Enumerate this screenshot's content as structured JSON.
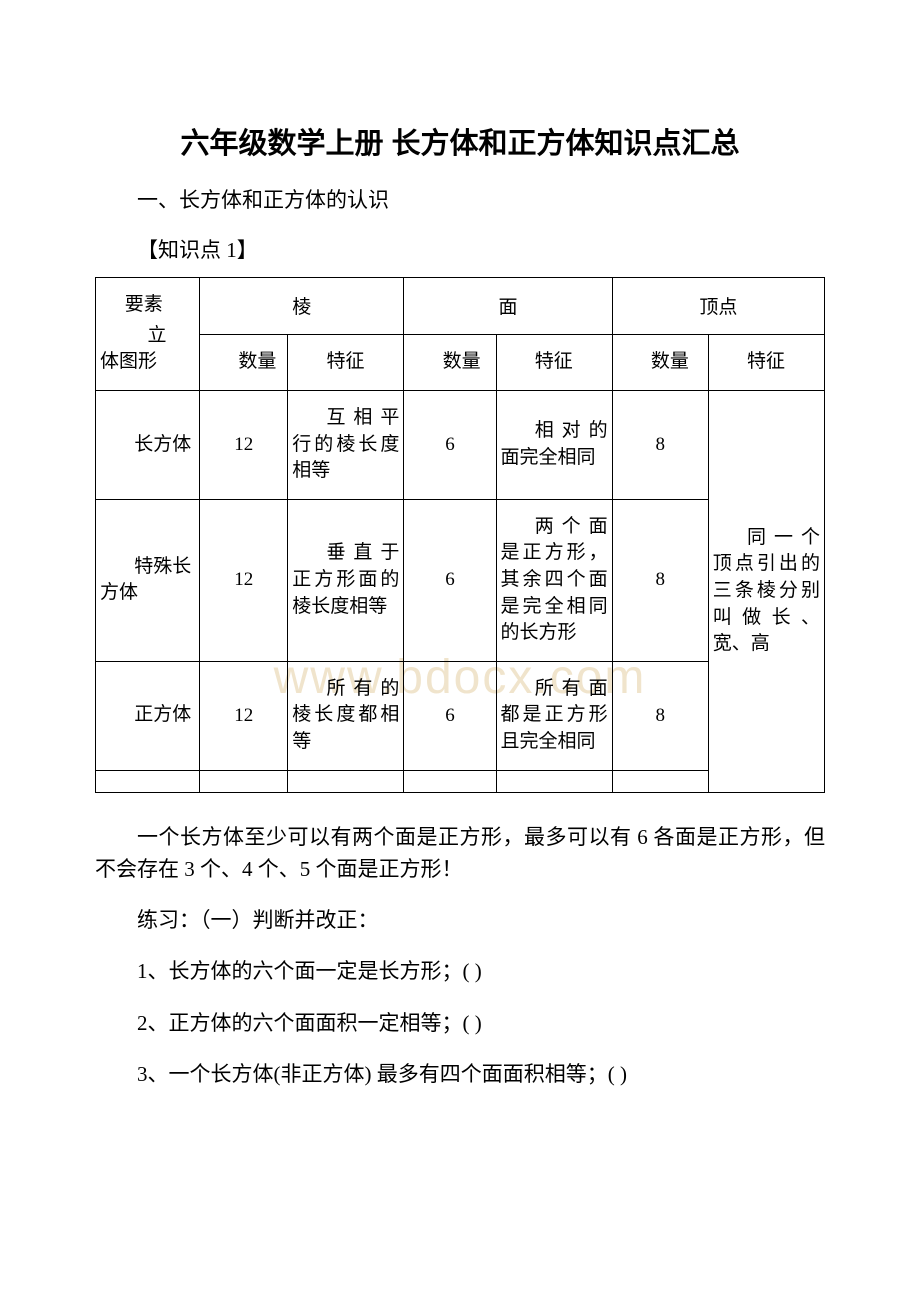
{
  "title": "六年级数学上册 长方体和正方体知识点汇总",
  "section1": "一、长方体和正方体的认识",
  "knowledge_point_label": "【知识点 1】",
  "watermark": "www.bdocx.com",
  "table": {
    "diag_top": "要素",
    "diag_bottom_line1": "立",
    "diag_bottom_line2": "体图形",
    "group_headers": [
      "棱",
      "面",
      "顶点"
    ],
    "sub_headers": {
      "count": "数量",
      "feature": "特征"
    },
    "rows": [
      {
        "name": "长方体",
        "edge_count": "12",
        "edge_feature": "互相平行的棱长度相等",
        "face_count": "6",
        "face_feature": "相对的面完全相同",
        "vertex_count": "8"
      },
      {
        "name": "特殊长方体",
        "edge_count": "12",
        "edge_feature": "垂直于正方形面的棱长度相等",
        "face_count": "6",
        "face_feature": "两个面是正方形，其余四个面是完全相同的长方形",
        "vertex_count": "8"
      },
      {
        "name": "正方体",
        "edge_count": "12",
        "edge_feature": "所有的棱长度都相等",
        "face_count": "6",
        "face_feature": "所有面都是正方形且完全相同",
        "vertex_count": "8"
      }
    ],
    "vertex_feature_merged": "同一个顶点引出的三条棱分别叫做长、宽、高"
  },
  "paragraph1": "一个长方体至少可以有两个面是正方形，最多可以有 6 各面是正方形，但不会存在 3 个、4 个、5 个面是正方形！",
  "exercise_heading": "练习：（一）判断并改正：",
  "exercises": [
    "1、长方体的六个面一定是长方形；( )",
    "2、正方体的六个面面积一定相等；( )",
    "3、一个长方体(非正方体) 最多有四个面面积相等；( )"
  ],
  "col_widths": {
    "c0": "13%",
    "c1": "11%",
    "c2": "14.5%",
    "c3": "11.5%",
    "c4": "14.5%",
    "c5": "12%",
    "c6": "14.5%"
  }
}
